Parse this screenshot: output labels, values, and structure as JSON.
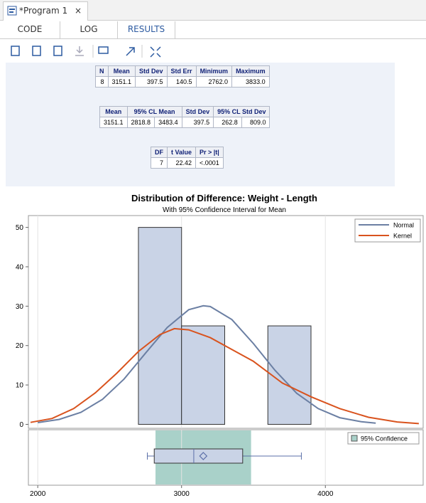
{
  "tab": {
    "title": "*Program 1",
    "close": "×"
  },
  "tabs": [
    "CODE",
    "LOG",
    "RESULTS"
  ],
  "tables": [
    {
      "header": [
        "N",
        "Mean",
        "Std Dev",
        "Std Err",
        "Minimum",
        "Maximum"
      ],
      "rows": [
        [
          "8",
          "3151.1",
          "397.5",
          "140.5",
          "2762.0",
          "3833.0"
        ]
      ]
    },
    {
      "header": [
        "Mean",
        "95% CL Mean",
        "Std Dev",
        "95% CL Std Dev"
      ],
      "rows": [
        [
          "3151.1",
          "2818.8",
          "3483.4",
          "397.5",
          "262.8",
          "809.0"
        ]
      ]
    },
    {
      "header": [
        "DF",
        "t Value",
        "Pr > |t|"
      ],
      "rows": [
        [
          "7",
          "22.42",
          "<.0001"
        ]
      ]
    }
  ],
  "chart_data": {
    "type": "histogram",
    "title": "Distribution of Difference: Weight - Length",
    "subtitle": "With 95% Confidence Interval for Mean",
    "bins": [
      2700,
      3000,
      3300,
      3600,
      3900
    ],
    "counts": [
      50,
      25,
      0,
      25
    ],
    "color": "#c9d3e6",
    "series": [
      {
        "name": "Normal",
        "color": "#6b7fa3",
        "x": [
          2000,
          2150,
          2300,
          2450,
          2600,
          2750,
          2900,
          3050,
          3151.1,
          3200,
          3350,
          3500,
          3650,
          3800,
          3950,
          4100,
          4250,
          4350
        ],
        "values": [
          0.45,
          1.26,
          3.04,
          6.35,
          11.5,
          18.1,
          24.6,
          29.1,
          30.1,
          29.9,
          26.6,
          20.5,
          13.7,
          7.9,
          4.0,
          1.7,
          0.66,
          0.32
        ]
      },
      {
        "name": "Kernel",
        "color": "#d9531e",
        "x": [
          1950,
          2100,
          2250,
          2400,
          2550,
          2700,
          2850,
          2950,
          3050,
          3200,
          3350,
          3500,
          3700,
          3900,
          4100,
          4300,
          4500,
          4650
        ],
        "values": [
          0.5,
          1.5,
          4,
          8,
          13,
          18.5,
          22.8,
          24.3,
          24,
          22,
          19,
          16,
          10.5,
          7,
          4,
          1.8,
          0.6,
          0.2
        ]
      }
    ],
    "xlim": [
      1935,
      4680
    ],
    "xticks": [
      2000,
      3000,
      4000
    ],
    "ylim": [
      -1,
      53
    ],
    "yticks": [
      0,
      10,
      20,
      30,
      40,
      50
    ],
    "grid": true,
    "legend": "top-right",
    "box": {
      "min": 2762,
      "q1": 2810,
      "median": 3085,
      "q3": 3425,
      "max": 3833,
      "mean": 3151.1,
      "color": "#5b6fa8"
    },
    "ci": {
      "name": "95% Confidence",
      "low": 2818.8,
      "high": 3483.4,
      "color": "#a9d1c9"
    }
  }
}
